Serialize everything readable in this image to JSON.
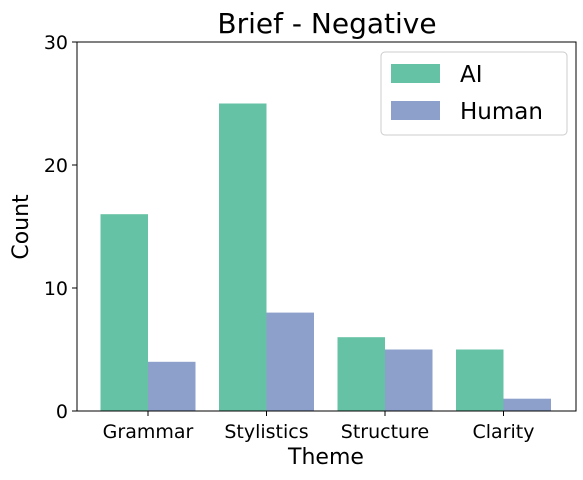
{
  "chart_data": {
    "type": "bar",
    "title": "Brief - Negative",
    "xlabel": "Theme",
    "ylabel": "Count",
    "categories": [
      "Grammar",
      "Stylistics",
      "Structure",
      "Clarity"
    ],
    "series": [
      {
        "name": "AI",
        "values": [
          16,
          25,
          6,
          5
        ],
        "color": "#66c2a5"
      },
      {
        "name": "Human",
        "values": [
          4,
          8,
          5,
          1
        ],
        "color": "#8da0cb"
      }
    ],
    "ylim": [
      0,
      30
    ],
    "yticks": [
      0,
      10,
      20,
      30
    ],
    "grid": false,
    "legend_position": "top-right"
  }
}
